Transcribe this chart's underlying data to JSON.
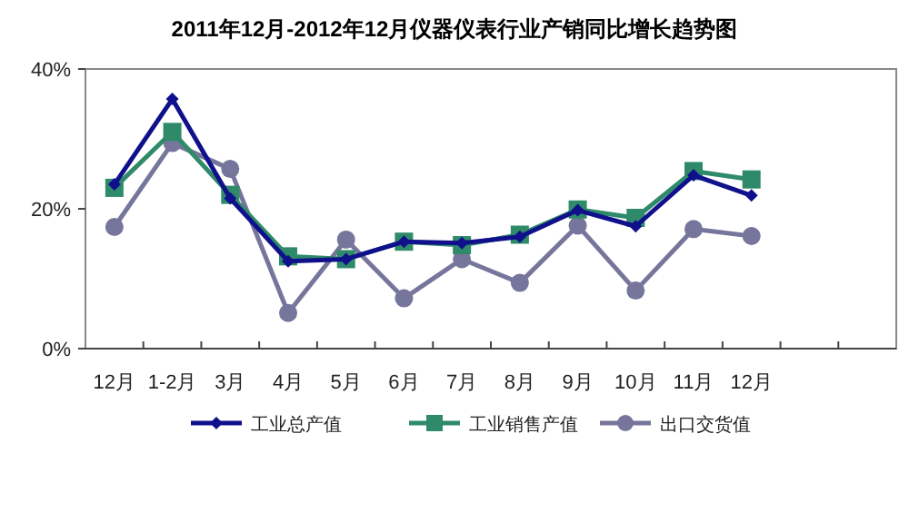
{
  "chart_data": {
    "type": "line",
    "title": "2011年12月-2012年12月仪器仪表行业产销同比增长趋势图",
    "categories": [
      "12月",
      "1-2月",
      "3月",
      "4月",
      "5月",
      "6月",
      "7月",
      "8月",
      "9月",
      "10月",
      "11月",
      "12月",
      null,
      null
    ],
    "series": [
      {
        "name": "工业总产值",
        "color": "#10108c",
        "marker": "diamond",
        "values": [
          23.5,
          35.7,
          21.5,
          12.5,
          12.8,
          15.3,
          15.1,
          16,
          19.8,
          17.5,
          24.8,
          21.9,
          null,
          null
        ]
      },
      {
        "name": "工业销售产值",
        "color": "#2f8a6a",
        "marker": "square",
        "values": [
          23,
          31,
          22,
          13.2,
          12.8,
          15.3,
          14.8,
          16.3,
          19.9,
          18.7,
          25.4,
          24.2,
          null,
          null
        ]
      },
      {
        "name": "出口交货值",
        "color": "#76769c",
        "marker": "circle",
        "values": [
          17.4,
          29.4,
          25.7,
          5.1,
          15.6,
          7.2,
          12.8,
          9.4,
          17.6,
          8.3,
          17.1,
          16.1,
          null,
          null
        ]
      }
    ],
    "ylim": [
      0,
      40
    ],
    "yticks": [
      {
        "value": 0,
        "label": "0%"
      },
      {
        "value": 20,
        "label": "20%"
      },
      {
        "value": 40,
        "label": "40%"
      }
    ],
    "grid": false,
    "legend": "bottom",
    "line_style": "solid"
  }
}
